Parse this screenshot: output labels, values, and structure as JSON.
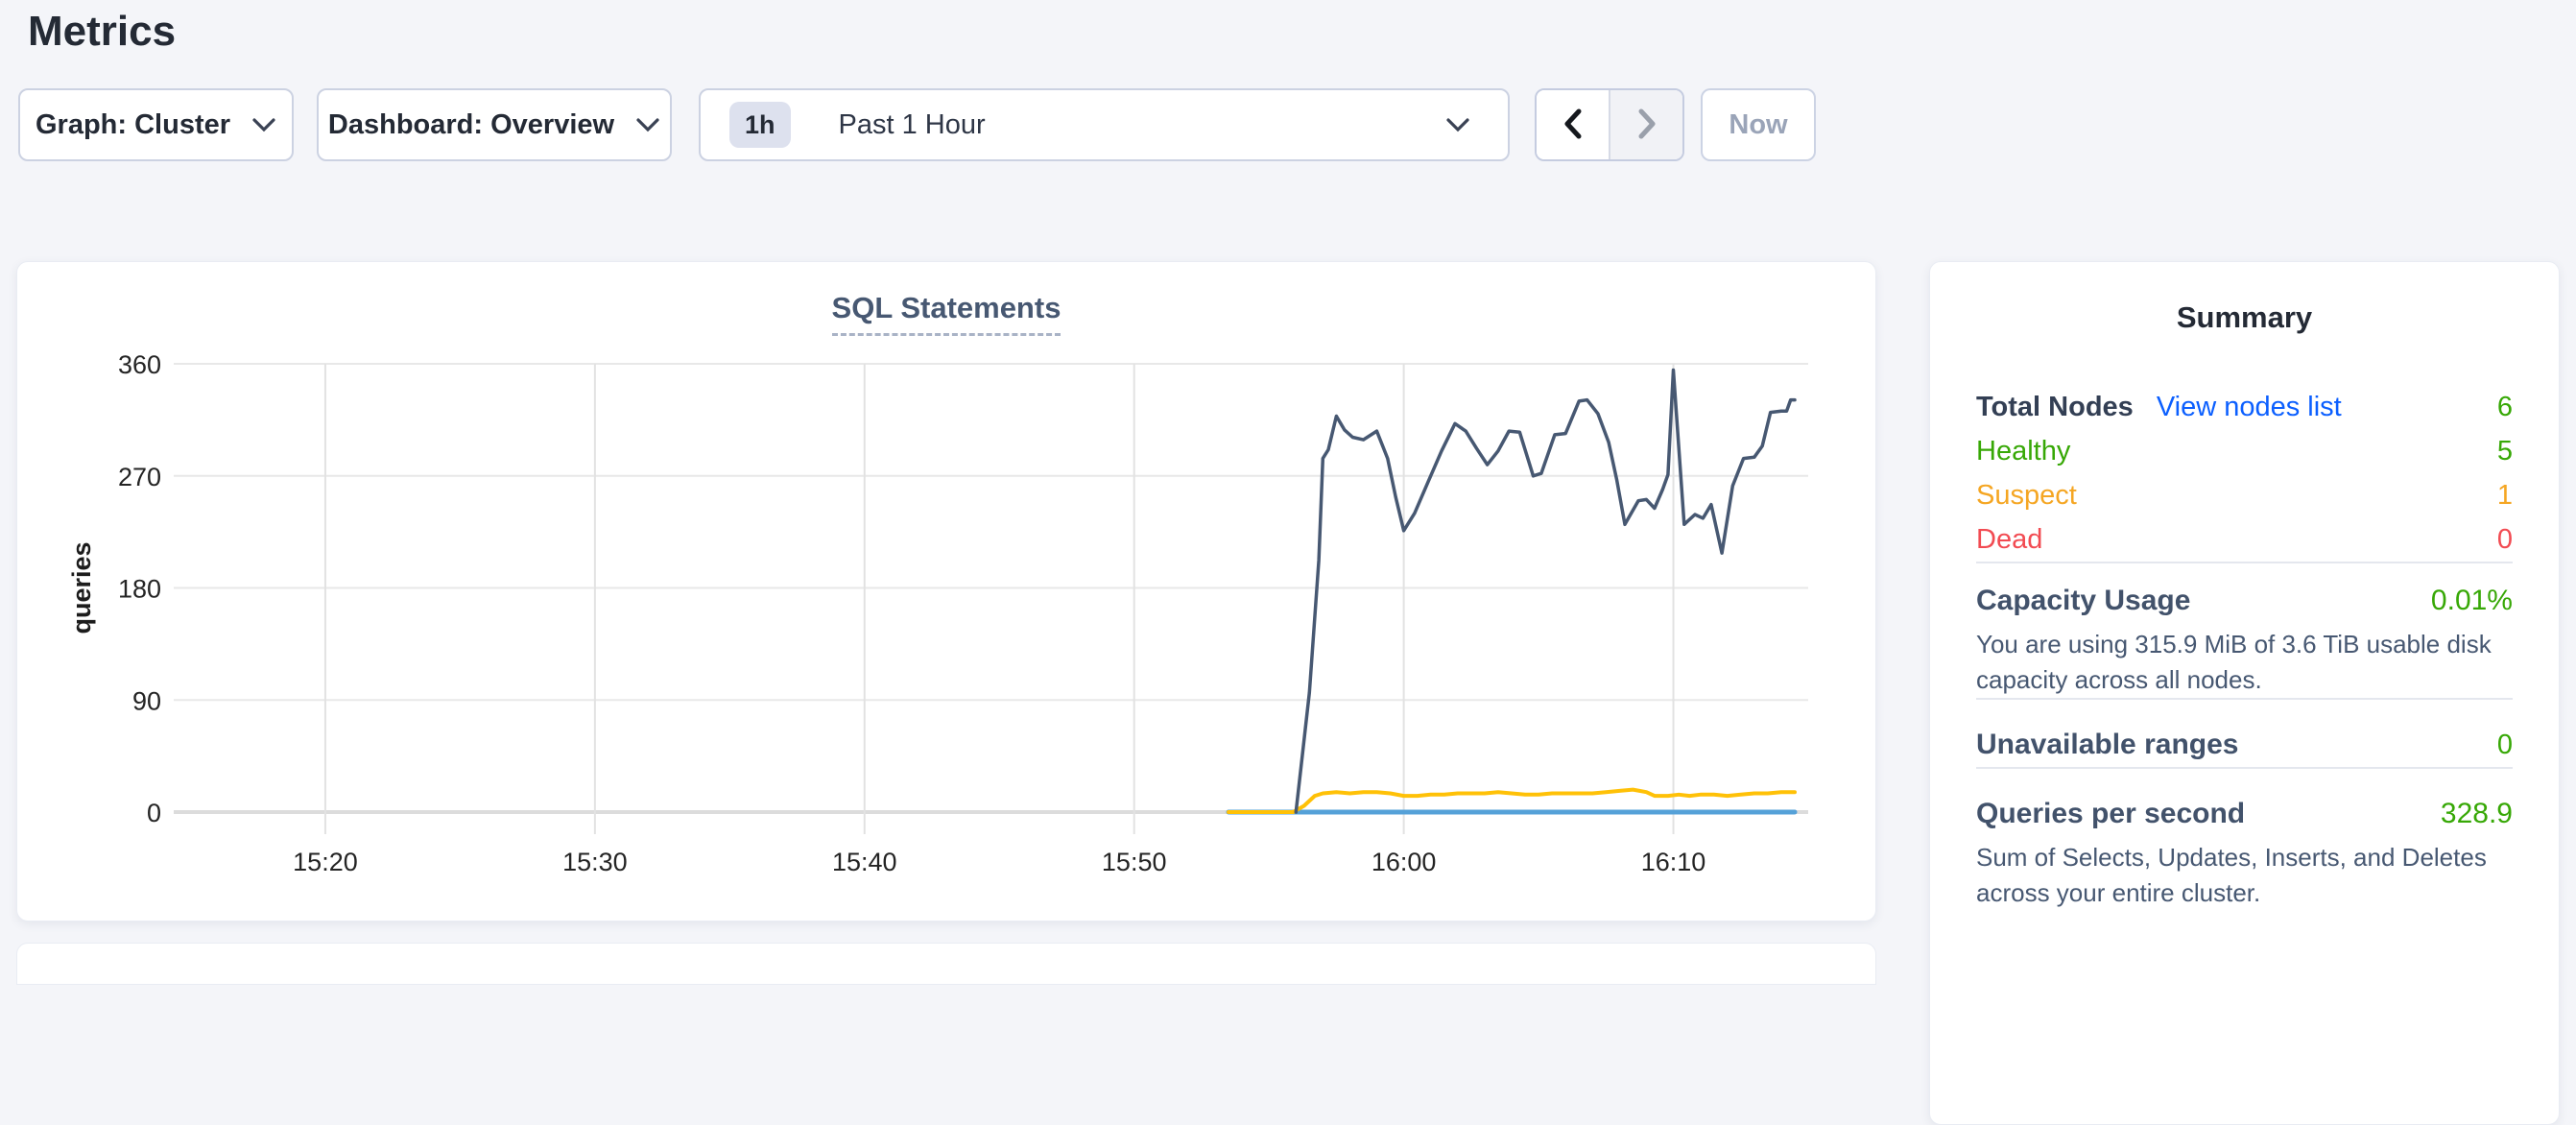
{
  "page": {
    "title": "Metrics"
  },
  "toolbar": {
    "graph_dropdown": {
      "label": "Graph: Cluster"
    },
    "dashboard_dropdown": {
      "label": "Dashboard: Overview"
    },
    "time_selector": {
      "badge": "1h",
      "value": "Past 1 Hour"
    },
    "now_button": {
      "label": "Now"
    },
    "icons": [
      "chevron-down-icon",
      "chevron-left-icon",
      "chevron-right-icon"
    ]
  },
  "summary": {
    "title": "Summary",
    "nodes": {
      "total_label": "Total Nodes",
      "view_link": "View nodes list",
      "total_value": "6",
      "rows": [
        {
          "label": "Healthy",
          "value": "5",
          "status": "healthy"
        },
        {
          "label": "Suspect",
          "value": "1",
          "status": "suspect"
        },
        {
          "label": "Dead",
          "value": "0",
          "status": "dead"
        }
      ]
    },
    "capacity": {
      "label": "Capacity Usage",
      "value": "0.01%",
      "description": "You are using 315.9 MiB of 3.6 TiB usable disk capacity across all nodes."
    },
    "unavailable": {
      "label": "Unavailable ranges",
      "value": "0"
    },
    "qps": {
      "label": "Queries per second",
      "value": "328.9",
      "description": "Sum of Selects, Updates, Inserts, and Deletes across your entire cluster."
    }
  },
  "chart_data": {
    "type": "line",
    "title": "SQL Statements",
    "ylabel": "queries",
    "ylim": [
      0,
      360
    ],
    "yticks": [
      0,
      90,
      180,
      270,
      360
    ],
    "x_start_label": "15:15",
    "x_end_label": "16:15",
    "grid": true,
    "legend": "none",
    "x_ticks": [
      {
        "minute": 5,
        "label": "15:20"
      },
      {
        "minute": 15,
        "label": "15:30"
      },
      {
        "minute": 25,
        "label": "15:40"
      },
      {
        "minute": 35,
        "label": "15:50"
      },
      {
        "minute": 45,
        "label": "16:00"
      },
      {
        "minute": 55,
        "label": "16:10"
      }
    ],
    "series": [
      {
        "name": "statements-line-navy",
        "color": "#475872",
        "stroke_width": 3.5,
        "points": [
          [
            41.0,
            0
          ],
          [
            41.5,
            96
          ],
          [
            41.85,
            202
          ],
          [
            42.0,
            284
          ],
          [
            42.2,
            291
          ],
          [
            42.5,
            318
          ],
          [
            42.8,
            307
          ],
          [
            43.1,
            301
          ],
          [
            43.5,
            299
          ],
          [
            44.0,
            306
          ],
          [
            44.4,
            284
          ],
          [
            44.7,
            253
          ],
          [
            45.0,
            226
          ],
          [
            45.4,
            240
          ],
          [
            45.9,
            265
          ],
          [
            46.4,
            290
          ],
          [
            46.9,
            312
          ],
          [
            47.3,
            306
          ],
          [
            47.7,
            292
          ],
          [
            48.1,
            279
          ],
          [
            48.5,
            290
          ],
          [
            48.9,
            306
          ],
          [
            49.3,
            305
          ],
          [
            49.8,
            270
          ],
          [
            50.1,
            272
          ],
          [
            50.6,
            303
          ],
          [
            51.0,
            304
          ],
          [
            51.5,
            330
          ],
          [
            51.8,
            331
          ],
          [
            52.2,
            320
          ],
          [
            52.6,
            297
          ],
          [
            52.9,
            267
          ],
          [
            53.2,
            231
          ],
          [
            53.7,
            250
          ],
          [
            54.0,
            251
          ],
          [
            54.3,
            244
          ],
          [
            54.6,
            259
          ],
          [
            54.8,
            271
          ],
          [
            55.0,
            355
          ],
          [
            55.4,
            231
          ],
          [
            55.8,
            239
          ],
          [
            56.1,
            236
          ],
          [
            56.4,
            247
          ],
          [
            56.8,
            208
          ],
          [
            57.2,
            262
          ],
          [
            57.6,
            284
          ],
          [
            58.0,
            285
          ],
          [
            58.3,
            294
          ],
          [
            58.6,
            321
          ],
          [
            59.0,
            322
          ],
          [
            59.2,
            322
          ],
          [
            59.35,
            331
          ],
          [
            59.5,
            331
          ]
        ]
      },
      {
        "name": "statements-line-yellow",
        "color": "#ffc107",
        "stroke_width": 4,
        "points": [
          [
            38.5,
            0
          ],
          [
            40.9,
            0
          ],
          [
            41.3,
            5
          ],
          [
            41.7,
            13
          ],
          [
            42.0,
            15
          ],
          [
            42.5,
            16
          ],
          [
            43.0,
            15
          ],
          [
            43.5,
            16
          ],
          [
            44.0,
            16
          ],
          [
            44.5,
            15
          ],
          [
            45.0,
            13
          ],
          [
            45.5,
            13
          ],
          [
            46.0,
            14
          ],
          [
            46.5,
            14
          ],
          [
            47.0,
            15
          ],
          [
            47.5,
            15
          ],
          [
            48.0,
            15
          ],
          [
            48.5,
            16
          ],
          [
            49.0,
            15
          ],
          [
            49.5,
            14
          ],
          [
            50.0,
            14
          ],
          [
            50.5,
            15
          ],
          [
            51.0,
            15
          ],
          [
            51.5,
            15
          ],
          [
            52.0,
            15
          ],
          [
            52.5,
            16
          ],
          [
            53.0,
            17
          ],
          [
            53.5,
            18
          ],
          [
            54.0,
            16
          ],
          [
            54.3,
            13
          ],
          [
            54.8,
            13
          ],
          [
            55.2,
            14
          ],
          [
            55.6,
            13
          ],
          [
            56.0,
            14
          ],
          [
            56.5,
            14
          ],
          [
            57.0,
            13
          ],
          [
            57.5,
            14
          ],
          [
            58.0,
            15
          ],
          [
            58.5,
            15
          ],
          [
            59.0,
            16
          ],
          [
            59.5,
            16
          ]
        ]
      },
      {
        "name": "statements-line-blue",
        "color": "#55a1d8",
        "stroke_width": 5,
        "points": [
          [
            38.5,
            0
          ],
          [
            59.5,
            0
          ]
        ]
      }
    ]
  },
  "colors": {
    "background": "#f4f5f9",
    "dark_text": "#242a35",
    "heading_slate": "#475872",
    "green": "#37a806",
    "orange": "#f5a623",
    "red": "#f24b52",
    "link_blue": "#0b5fff",
    "line_navy": "#475872",
    "line_yellow": "#ffc107",
    "line_blue": "#55a1d8"
  }
}
